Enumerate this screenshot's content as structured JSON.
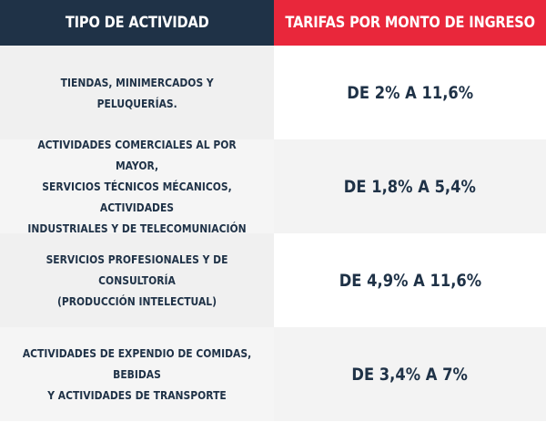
{
  "header": {
    "col1": "TIPO DE ACTIVIDAD",
    "col2": "TARIFAS POR MONTO DE INGRESO"
  },
  "rows": [
    {
      "tipo": "TIENDAS, MINIMERCADOS Y\nPELUQUERÍAS.",
      "tarifa": "DE 2% A 11,6%"
    },
    {
      "tipo": "ACTIVIDADES COMERCIALES AL POR MAYOR,\nSERVICIOS TÉCNICOS MÉCANICOS, ACTIVIDADES\nINDUSTRIALES Y DE TELECOMUNIACIÓN",
      "tarifa": "DE 1,8% A 5,4%"
    },
    {
      "tipo": "SERVICIOS PROFESIONALES Y DE CONSULTORÍA\n(PRODUCCIÓN INTELECTUAL)",
      "tarifa": "DE 4,9% A 11,6%"
    },
    {
      "tipo": "ACTIVIDADES DE EXPENDIO DE COMIDAS, BEBIDAS\nY ACTIVIDADES DE TRANSPORTE",
      "tarifa": "DE 3,4% A 7%"
    }
  ],
  "colors": {
    "header_left": "#1f3247",
    "header_right": "#e9273b",
    "text": "#1f3247"
  }
}
